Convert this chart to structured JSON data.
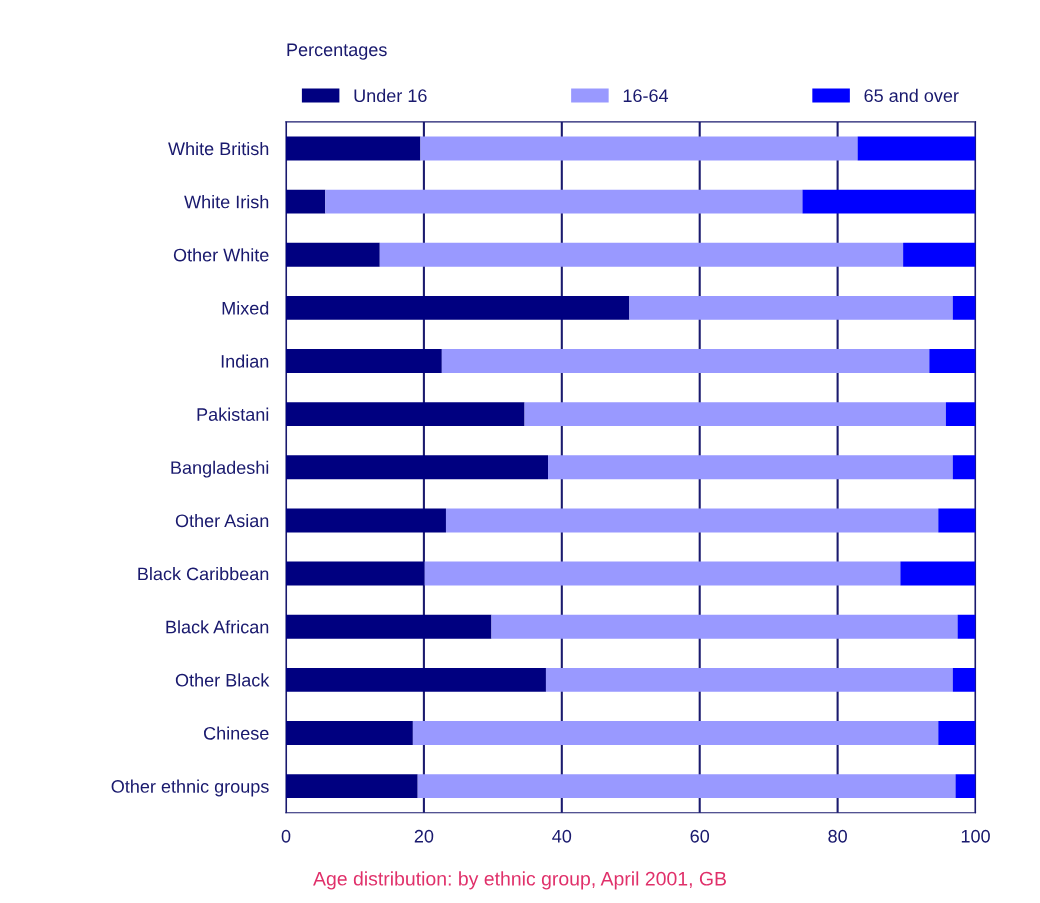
{
  "chart_data": {
    "type": "bar",
    "orientation": "horizontal",
    "stacked": true,
    "title": "Age distribution: by ethnic group, April 2001, GB",
    "annotations": [
      "Percentages"
    ],
    "categories": [
      "White British",
      "White Irish",
      "Other White",
      "Mixed",
      "Indian",
      "Pakistani",
      "Bangladeshi",
      "Other Asian",
      "Black Caribbean",
      "Black African",
      "Other Black",
      "Chinese",
      "Other ethnic groups"
    ],
    "series": [
      {
        "name": "Under 16",
        "color": "#000080",
        "values": [
          19.5,
          5.7,
          13.6,
          49.8,
          22.6,
          34.6,
          38.0,
          23.2,
          20.1,
          29.8,
          37.7,
          18.4,
          19.1
        ]
      },
      {
        "name": "16-64",
        "color": "#9999ff",
        "values": [
          63.4,
          69.2,
          75.9,
          46.9,
          70.7,
          61.1,
          58.7,
          71.4,
          69.0,
          67.6,
          59.0,
          76.2,
          78.0
        ]
      },
      {
        "name": "65 and over",
        "color": "#0000ff",
        "values": [
          17.1,
          25.1,
          10.5,
          3.3,
          6.7,
          4.3,
          3.3,
          5.4,
          10.9,
          2.6,
          3.3,
          5.4,
          2.9
        ]
      }
    ],
    "xlim": [
      0,
      100
    ],
    "xticks": [
      0,
      20,
      40,
      60,
      80,
      100
    ],
    "grid": "x",
    "legend": "top"
  }
}
